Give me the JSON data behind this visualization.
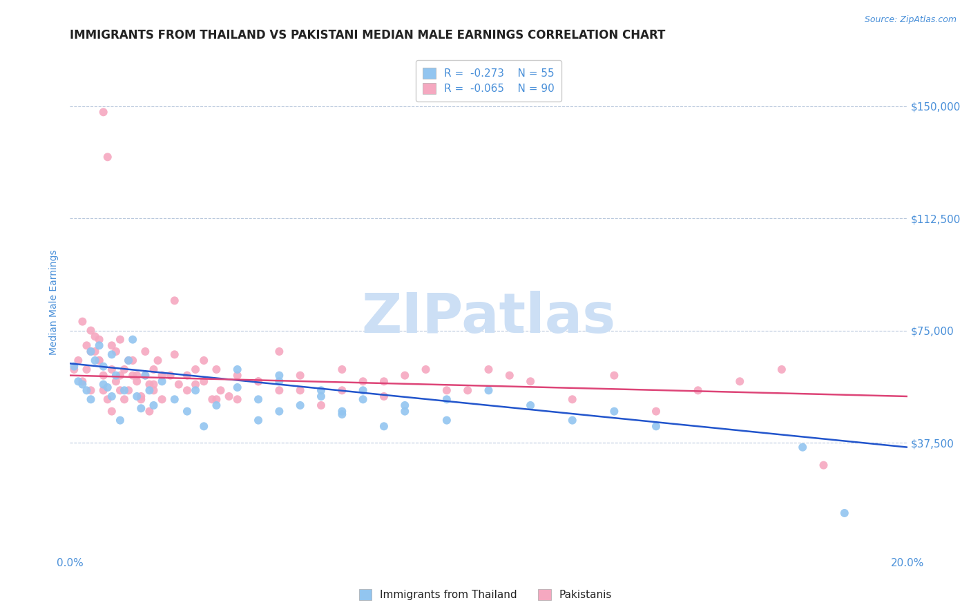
{
  "title": "IMMIGRANTS FROM THAILAND VS PAKISTANI MEDIAN MALE EARNINGS CORRELATION CHART",
  "source_text": "Source: ZipAtlas.com",
  "ylabel": "Median Male Earnings",
  "xlim": [
    0.0,
    0.2
  ],
  "ylim": [
    0,
    168750
  ],
  "yticks": [
    37500,
    75000,
    112500,
    150000
  ],
  "ytick_labels": [
    "$37,500",
    "$75,000",
    "$112,500",
    "$150,000"
  ],
  "xticks": [
    0.0,
    0.2
  ],
  "xtick_labels": [
    "0.0%",
    "20.0%"
  ],
  "title_color": "#222222",
  "label_color": "#4a90d9",
  "watermark_text": "ZIPatlas",
  "watermark_color": "#ccdff5",
  "legend_r1": "-0.273",
  "legend_n1": "55",
  "legend_r2": "-0.065",
  "legend_n2": "90",
  "series1_color": "#92c5f0",
  "series2_color": "#f5a8c0",
  "series1_label": "Immigrants from Thailand",
  "series2_label": "Pakistanis",
  "trend1_color": "#2255cc",
  "trend2_color": "#dd4477",
  "background_color": "#ffffff",
  "grid_color": "#b8c8dc",
  "title_fontsize": 12,
  "axis_label_fontsize": 10,
  "tick_fontsize": 11,
  "legend_fontsize": 11,
  "scatter1_x": [
    0.001,
    0.002,
    0.003,
    0.004,
    0.005,
    0.005,
    0.006,
    0.007,
    0.008,
    0.008,
    0.009,
    0.01,
    0.01,
    0.011,
    0.012,
    0.013,
    0.014,
    0.015,
    0.016,
    0.017,
    0.018,
    0.019,
    0.02,
    0.022,
    0.025,
    0.028,
    0.03,
    0.032,
    0.035,
    0.04,
    0.045,
    0.05,
    0.055,
    0.06,
    0.065,
    0.07,
    0.08,
    0.09,
    0.1,
    0.11,
    0.12,
    0.13,
    0.14,
    0.05,
    0.06,
    0.065,
    0.07,
    0.075,
    0.08,
    0.09,
    0.04,
    0.045,
    0.05,
    0.175,
    0.185
  ],
  "scatter1_y": [
    63000,
    58000,
    57000,
    55000,
    52000,
    68000,
    65000,
    70000,
    63000,
    57000,
    56000,
    53000,
    67000,
    60000,
    45000,
    55000,
    65000,
    72000,
    53000,
    49000,
    60000,
    55000,
    50000,
    58000,
    52000,
    48000,
    55000,
    43000,
    50000,
    56000,
    45000,
    58000,
    50000,
    55000,
    47000,
    52000,
    48000,
    52000,
    55000,
    50000,
    45000,
    48000,
    43000,
    60000,
    53000,
    48000,
    55000,
    43000,
    50000,
    45000,
    62000,
    52000,
    48000,
    36000,
    14000
  ],
  "scatter2_x": [
    0.001,
    0.002,
    0.003,
    0.004,
    0.005,
    0.005,
    0.006,
    0.007,
    0.008,
    0.008,
    0.009,
    0.01,
    0.01,
    0.011,
    0.012,
    0.012,
    0.013,
    0.014,
    0.015,
    0.016,
    0.017,
    0.018,
    0.019,
    0.02,
    0.02,
    0.021,
    0.022,
    0.025,
    0.028,
    0.03,
    0.032,
    0.035,
    0.04,
    0.045,
    0.05,
    0.055,
    0.06,
    0.065,
    0.07,
    0.075,
    0.08,
    0.09,
    0.1,
    0.11,
    0.12,
    0.13,
    0.14,
    0.15,
    0.16,
    0.17,
    0.18,
    0.025,
    0.035,
    0.045,
    0.055,
    0.065,
    0.075,
    0.085,
    0.095,
    0.105,
    0.003,
    0.004,
    0.005,
    0.006,
    0.007,
    0.007,
    0.008,
    0.009,
    0.01,
    0.011,
    0.012,
    0.013,
    0.014,
    0.015,
    0.016,
    0.017,
    0.018,
    0.019,
    0.02,
    0.022,
    0.024,
    0.026,
    0.028,
    0.03,
    0.032,
    0.034,
    0.036,
    0.038,
    0.04,
    0.05
  ],
  "scatter2_y": [
    62000,
    65000,
    58000,
    62000,
    68000,
    55000,
    73000,
    65000,
    60000,
    55000,
    52000,
    70000,
    48000,
    68000,
    72000,
    60000,
    62000,
    55000,
    65000,
    60000,
    52000,
    68000,
    48000,
    62000,
    57000,
    65000,
    60000,
    85000,
    60000,
    57000,
    65000,
    52000,
    60000,
    58000,
    68000,
    55000,
    50000,
    62000,
    58000,
    53000,
    60000,
    55000,
    62000,
    58000,
    52000,
    60000,
    48000,
    55000,
    58000,
    62000,
    30000,
    67000,
    62000,
    58000,
    60000,
    55000,
    58000,
    62000,
    55000,
    60000,
    78000,
    70000,
    75000,
    68000,
    65000,
    72000,
    148000,
    133000,
    62000,
    58000,
    55000,
    52000,
    65000,
    60000,
    58000,
    53000,
    60000,
    57000,
    55000,
    52000,
    60000,
    57000,
    55000,
    62000,
    58000,
    52000,
    55000,
    53000,
    52000,
    55000
  ],
  "trend1_x": [
    0.0,
    0.2
  ],
  "trend1_y": [
    64000,
    36000
  ],
  "trend2_x": [
    0.0,
    0.2
  ],
  "trend2_y": [
    60000,
    53000
  ]
}
